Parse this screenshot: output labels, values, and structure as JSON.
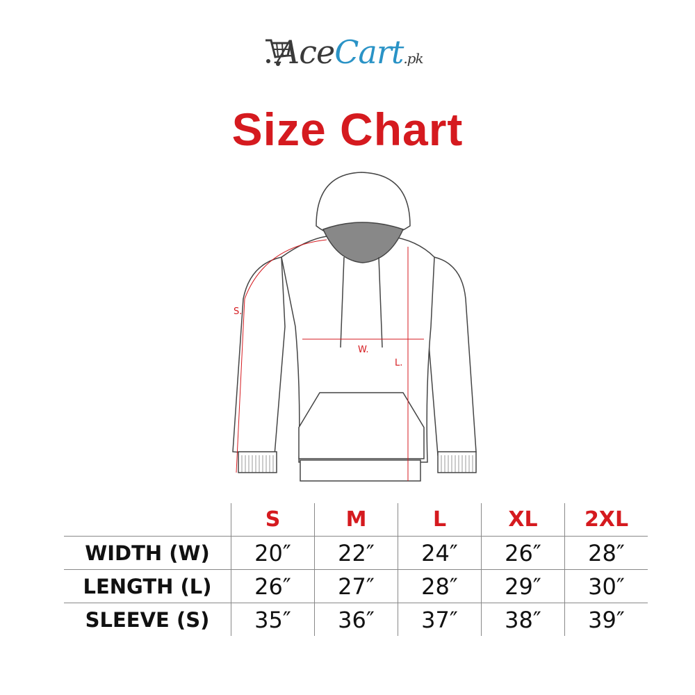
{
  "logo": {
    "part1": "Ace",
    "part2": "Cart",
    "suffix": ".pk",
    "brand_color": "#2a93c6"
  },
  "title": "Size Chart",
  "title_color": "#d51a1f",
  "diagram": {
    "labels": {
      "sleeve": "S.",
      "width": "W.",
      "length": "L."
    }
  },
  "table": {
    "columns": [
      "S",
      "M",
      "L",
      "XL",
      "2XL"
    ],
    "rows": [
      {
        "label": "WIDTH (W)",
        "values": [
          "20″",
          "22″",
          "24″",
          "26″",
          "28″"
        ]
      },
      {
        "label": "LENGTH (L)",
        "values": [
          "26″",
          "27″",
          "28″",
          "29″",
          "30″"
        ]
      },
      {
        "label": "SLEEVE (S)",
        "values": [
          "35″",
          "36″",
          "37″",
          "38″",
          "39″"
        ]
      }
    ]
  }
}
